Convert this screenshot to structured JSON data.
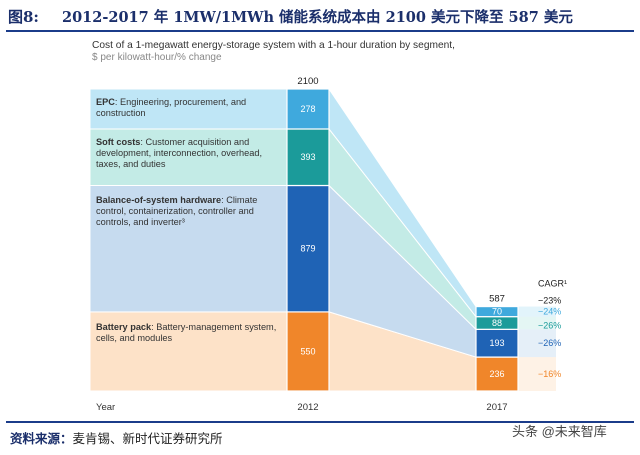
{
  "figure": {
    "label": "图8:",
    "title": "2012-2017 年 1MW/1MWh 储能系统成本由 2100 美元下降至 587 美元"
  },
  "chart_data": {
    "type": "bar",
    "title": "Cost of a 1-megawatt energy-storage system with a 1-hour duration by segment,",
    "subtitle": "$ per kilowatt-hour/% change",
    "xlabel": "Year",
    "categories": [
      "2012",
      "2017"
    ],
    "totals": [
      2100,
      587
    ],
    "ylim": [
      0,
      2100
    ],
    "cagr_header": "CAGR¹",
    "series": [
      {
        "key": "battery",
        "name": "Battery pack",
        "description": "Battery-management system, cells, and modules",
        "values": [
          550,
          236
        ],
        "cagr": "−16%",
        "bar_color": "#f0862a",
        "band_color": "#fde2c8"
      },
      {
        "key": "bos",
        "name": "Balance-of-system hardware",
        "description": "Climate control, containerization, controller and controls, and inverter³",
        "values": [
          879,
          193
        ],
        "cagr": "−26%",
        "bar_color": "#1f63b5",
        "band_color": "#c6dbef"
      },
      {
        "key": "soft",
        "name": "Soft costs",
        "description": "Customer acquisition and development, interconnection, overhead, taxes, and duties",
        "values": [
          393,
          88
        ],
        "cagr": "−26%",
        "bar_color": "#1b9b9a",
        "band_color": "#c3ebe6"
      },
      {
        "key": "epc",
        "name": "EPC",
        "description": "Engineering, procurement, and construction",
        "values": [
          278,
          70
        ],
        "cagr": "−24%",
        "bar_color": "#3fa9dd",
        "band_color": "#bfe6f6"
      }
    ],
    "total_cagr": "−23%"
  },
  "source": {
    "label": "资料来源：",
    "text": "麦肯锡、新时代证券研究所"
  },
  "watermark": "头条 @未来智库"
}
